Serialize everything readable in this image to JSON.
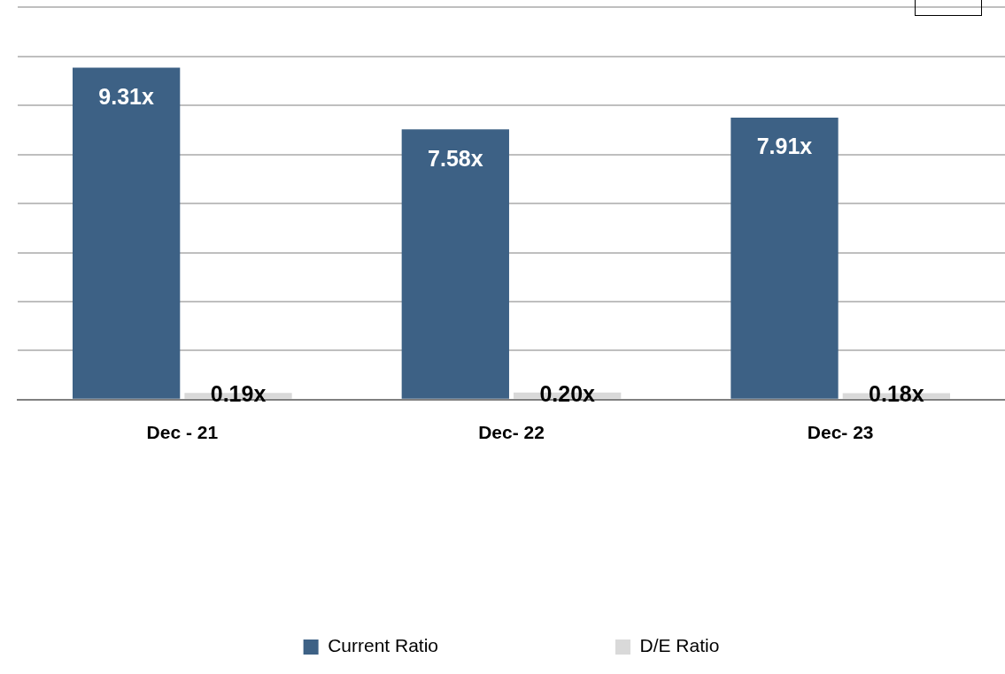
{
  "chart_data": {
    "type": "bar",
    "categories": [
      "Dec - 21",
      "Dec- 22",
      "Dec- 23"
    ],
    "series": [
      {
        "name": "Current Ratio",
        "color": "#3d6185",
        "values": [
          9.31,
          7.58,
          7.91
        ],
        "value_labels": [
          "9.31x",
          "7.58x",
          "7.91x"
        ]
      },
      {
        "name": "D/E Ratio",
        "color": "#d9d9d9",
        "values": [
          0.19,
          0.2,
          0.18
        ],
        "value_labels": [
          "0.19x",
          "0.20x",
          "0.18x"
        ]
      }
    ],
    "ylim": [
      0,
      11
    ],
    "yticks": [
      {
        "value": 0,
        "label": null
      },
      {
        "value": 1.375,
        "label": null
      },
      {
        "value": 2.75,
        "label": null
      },
      {
        "value": 4.125,
        "label": null
      },
      {
        "value": 5.5,
        "label": null
      },
      {
        "value": 6.875,
        "label": null
      },
      {
        "value": 8.25,
        "label": null
      },
      {
        "value": 9.625,
        "label": null
      },
      {
        "value": 11,
        "label": null
      }
    ],
    "grid": "y",
    "legend": "bottom"
  }
}
